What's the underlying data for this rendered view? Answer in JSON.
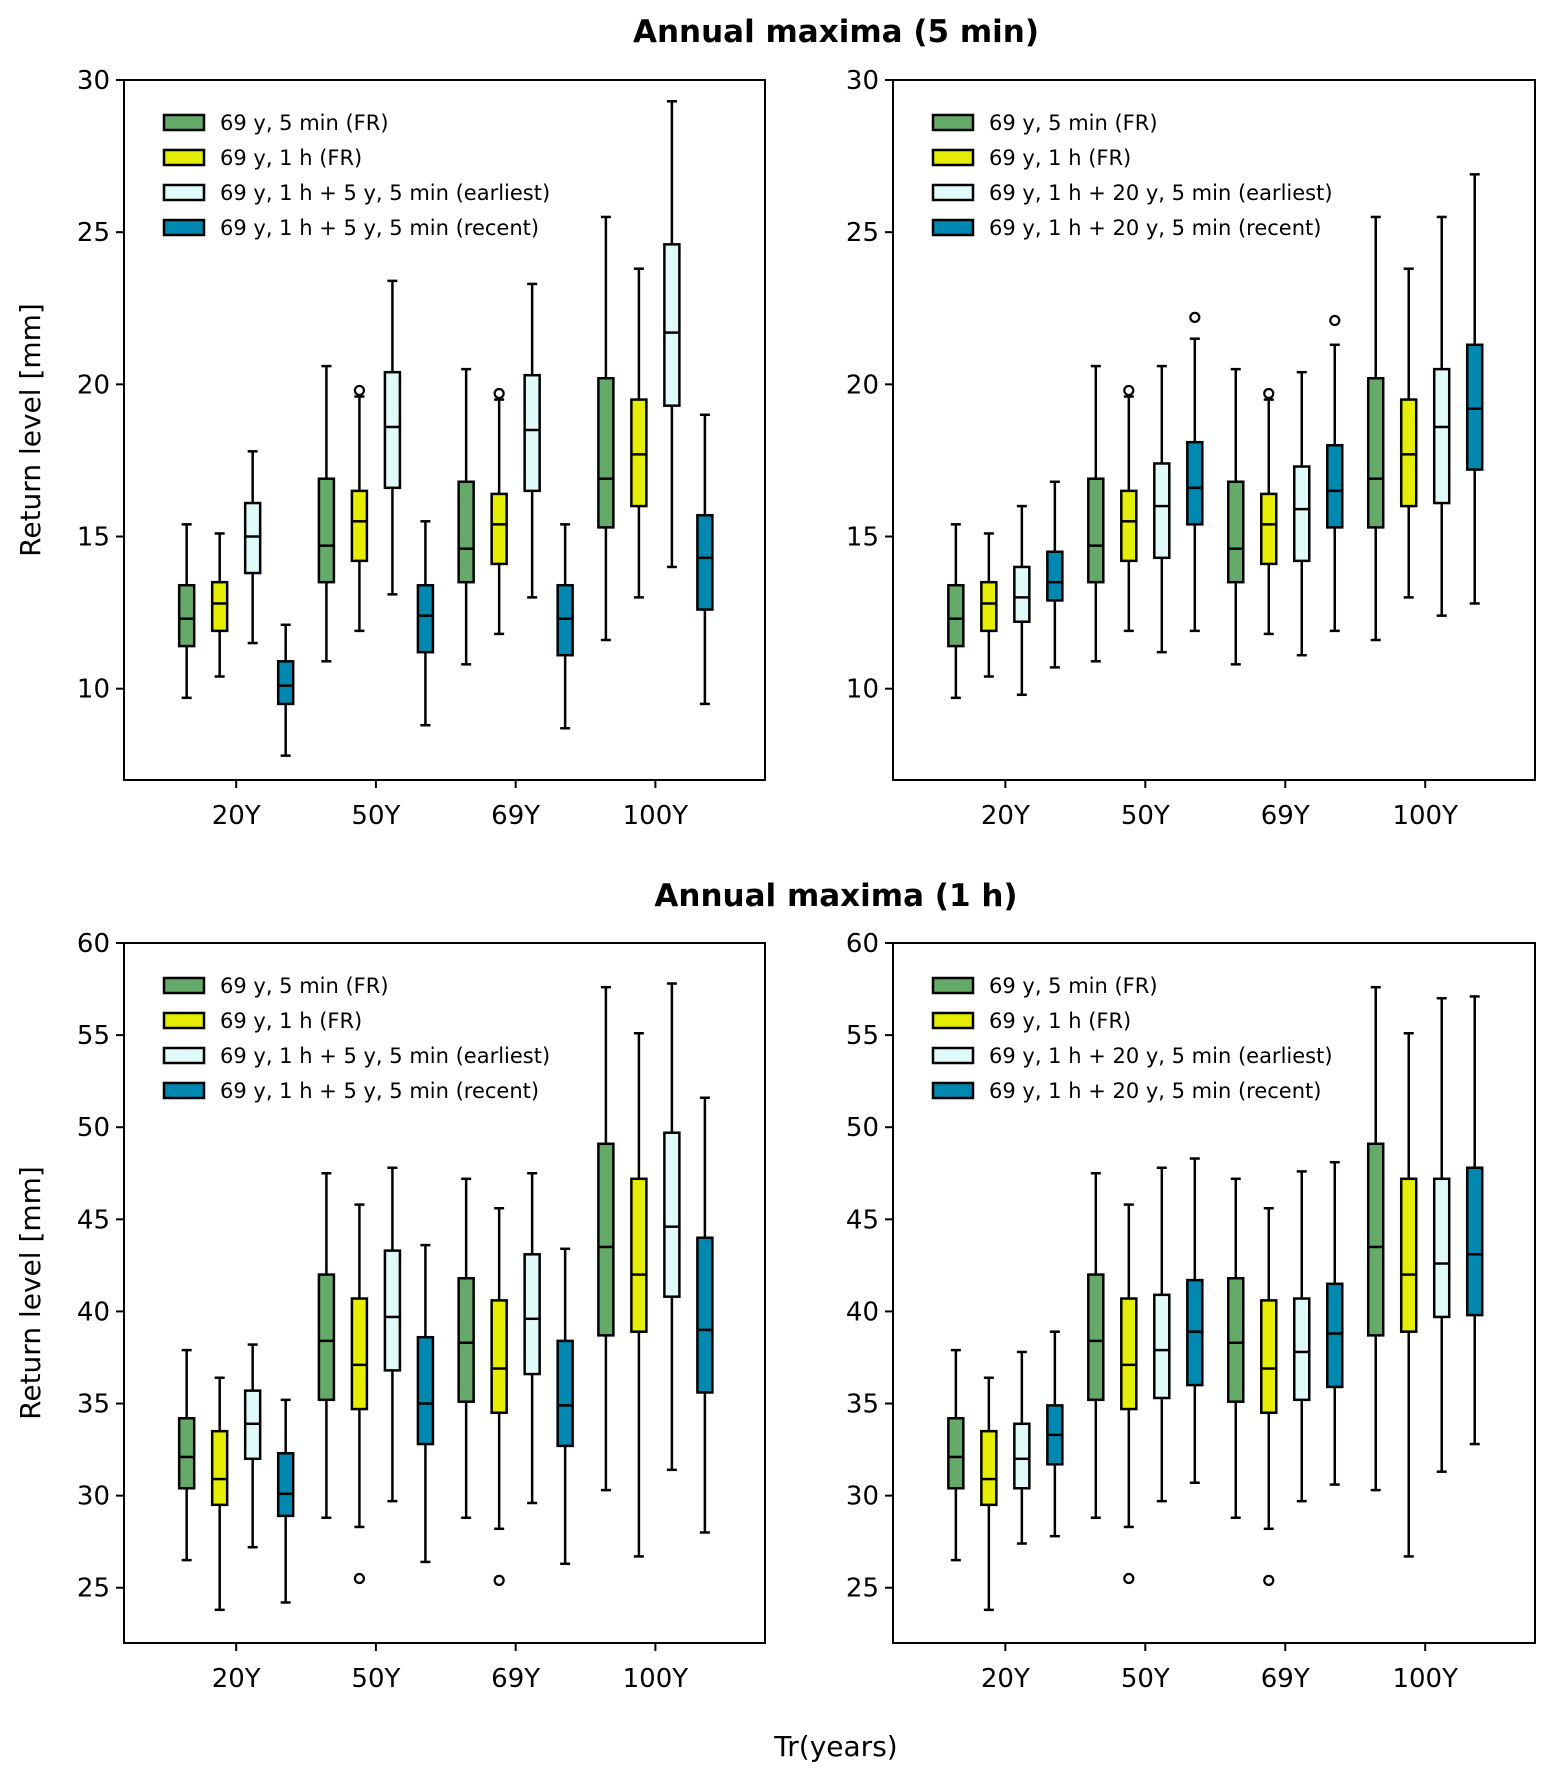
{
  "section_titles": [
    "Annual maxima (5 min)",
    "Annual maxima (1 h)"
  ],
  "xlabel": "Tr(years)",
  "chart_data": [
    {
      "type": "boxplot",
      "title": "Annual maxima (5 min)",
      "ylabel": "Return level [mm]",
      "xlabel": "",
      "ylim": [
        7,
        30
      ],
      "yticks": [
        10,
        15,
        20,
        25,
        30
      ],
      "categories": [
        "20Y",
        "50Y",
        "69Y",
        "100Y"
      ],
      "legend_position": "top-left",
      "series": [
        {
          "name": "69 y, 5 min (FR)",
          "color": "#66aa6a",
          "boxes": [
            {
              "whislo": 9.7,
              "q1": 11.4,
              "med": 12.3,
              "q3": 13.4,
              "whishi": 15.4,
              "fliers": []
            },
            {
              "whislo": 10.9,
              "q1": 13.5,
              "med": 14.7,
              "q3": 16.9,
              "whishi": 20.6,
              "fliers": []
            },
            {
              "whislo": 10.8,
              "q1": 13.5,
              "med": 14.6,
              "q3": 16.8,
              "whishi": 20.5,
              "fliers": []
            },
            {
              "whislo": 11.6,
              "q1": 15.3,
              "med": 16.9,
              "q3": 20.2,
              "whishi": 25.5,
              "fliers": []
            }
          ]
        },
        {
          "name": "69 y, 1 h (FR)",
          "color": "#e5ee00",
          "boxes": [
            {
              "whislo": 10.4,
              "q1": 11.9,
              "med": 12.8,
              "q3": 13.5,
              "whishi": 15.1,
              "fliers": []
            },
            {
              "whislo": 11.9,
              "q1": 14.2,
              "med": 15.5,
              "q3": 16.5,
              "whishi": 19.6,
              "fliers": [
                19.8
              ]
            },
            {
              "whislo": 11.8,
              "q1": 14.1,
              "med": 15.4,
              "q3": 16.4,
              "whishi": 19.5,
              "fliers": [
                19.7
              ]
            },
            {
              "whislo": 13.0,
              "q1": 16.0,
              "med": 17.7,
              "q3": 19.5,
              "whishi": 23.8,
              "fliers": []
            }
          ]
        },
        {
          "name": "69 y, 1 h + 5 y, 5 min (earliest)",
          "color": "#e0fafa",
          "boxes": [
            {
              "whislo": 11.5,
              "q1": 13.8,
              "med": 15.0,
              "q3": 16.1,
              "whishi": 17.8,
              "fliers": []
            },
            {
              "whislo": 13.1,
              "q1": 16.6,
              "med": 18.6,
              "q3": 20.4,
              "whishi": 23.4,
              "fliers": []
            },
            {
              "whislo": 13.0,
              "q1": 16.5,
              "med": 18.5,
              "q3": 20.3,
              "whishi": 23.3,
              "fliers": []
            },
            {
              "whislo": 14.0,
              "q1": 19.3,
              "med": 21.7,
              "q3": 24.6,
              "whishi": 29.3,
              "fliers": []
            }
          ]
        },
        {
          "name": "69 y, 1 h + 5 y, 5 min (recent)",
          "color": "#0088b0",
          "boxes": [
            {
              "whislo": 7.8,
              "q1": 9.5,
              "med": 10.1,
              "q3": 10.9,
              "whishi": 12.1,
              "fliers": []
            },
            {
              "whislo": 8.8,
              "q1": 11.2,
              "med": 12.4,
              "q3": 13.4,
              "whishi": 15.5,
              "fliers": []
            },
            {
              "whislo": 8.7,
              "q1": 11.1,
              "med": 12.3,
              "q3": 13.4,
              "whishi": 15.4,
              "fliers": []
            },
            {
              "whislo": 9.5,
              "q1": 12.6,
              "med": 14.3,
              "q3": 15.7,
              "whishi": 19.0,
              "fliers": []
            }
          ]
        }
      ]
    },
    {
      "type": "boxplot",
      "title": "Annual maxima (5 min)",
      "ylabel": "",
      "xlabel": "",
      "ylim": [
        7,
        30
      ],
      "yticks": [
        10,
        15,
        20,
        25,
        30
      ],
      "categories": [
        "20Y",
        "50Y",
        "69Y",
        "100Y"
      ],
      "legend_position": "top-left",
      "series": [
        {
          "name": "69 y, 5 min (FR)",
          "color": "#66aa6a",
          "boxes": [
            {
              "whislo": 9.7,
              "q1": 11.4,
              "med": 12.3,
              "q3": 13.4,
              "whishi": 15.4,
              "fliers": []
            },
            {
              "whislo": 10.9,
              "q1": 13.5,
              "med": 14.7,
              "q3": 16.9,
              "whishi": 20.6,
              "fliers": []
            },
            {
              "whislo": 10.8,
              "q1": 13.5,
              "med": 14.6,
              "q3": 16.8,
              "whishi": 20.5,
              "fliers": []
            },
            {
              "whislo": 11.6,
              "q1": 15.3,
              "med": 16.9,
              "q3": 20.2,
              "whishi": 25.5,
              "fliers": []
            }
          ]
        },
        {
          "name": "69 y, 1 h (FR)",
          "color": "#e5ee00",
          "boxes": [
            {
              "whislo": 10.4,
              "q1": 11.9,
              "med": 12.8,
              "q3": 13.5,
              "whishi": 15.1,
              "fliers": []
            },
            {
              "whislo": 11.9,
              "q1": 14.2,
              "med": 15.5,
              "q3": 16.5,
              "whishi": 19.6,
              "fliers": [
                19.8
              ]
            },
            {
              "whislo": 11.8,
              "q1": 14.1,
              "med": 15.4,
              "q3": 16.4,
              "whishi": 19.5,
              "fliers": [
                19.7
              ]
            },
            {
              "whislo": 13.0,
              "q1": 16.0,
              "med": 17.7,
              "q3": 19.5,
              "whishi": 23.8,
              "fliers": []
            }
          ]
        },
        {
          "name": "69 y, 1 h + 20 y, 5 min (earliest)",
          "color": "#e0fafa",
          "boxes": [
            {
              "whislo": 9.8,
              "q1": 12.2,
              "med": 13.0,
              "q3": 14.0,
              "whishi": 16.0,
              "fliers": []
            },
            {
              "whislo": 11.2,
              "q1": 14.3,
              "med": 16.0,
              "q3": 17.4,
              "whishi": 20.6,
              "fliers": []
            },
            {
              "whislo": 11.1,
              "q1": 14.2,
              "med": 15.9,
              "q3": 17.3,
              "whishi": 20.4,
              "fliers": []
            },
            {
              "whislo": 12.4,
              "q1": 16.1,
              "med": 18.6,
              "q3": 20.5,
              "whishi": 25.5,
              "fliers": []
            }
          ]
        },
        {
          "name": "69 y, 1 h + 20 y, 5 min (recent)",
          "color": "#0088b0",
          "boxes": [
            {
              "whislo": 10.7,
              "q1": 12.9,
              "med": 13.5,
              "q3": 14.5,
              "whishi": 16.8,
              "fliers": []
            },
            {
              "whislo": 11.9,
              "q1": 15.4,
              "med": 16.6,
              "q3": 18.1,
              "whishi": 21.5,
              "fliers": [
                22.2
              ]
            },
            {
              "whislo": 11.9,
              "q1": 15.3,
              "med": 16.5,
              "q3": 18.0,
              "whishi": 21.3,
              "fliers": [
                22.1
              ]
            },
            {
              "whislo": 12.8,
              "q1": 17.2,
              "med": 19.2,
              "q3": 21.3,
              "whishi": 26.9,
              "fliers": []
            }
          ]
        }
      ]
    },
    {
      "type": "boxplot",
      "title": "Annual maxima (1 h)",
      "ylabel": "Return level [mm]",
      "xlabel": "Tr(years)",
      "ylim": [
        22,
        60
      ],
      "yticks": [
        25,
        30,
        35,
        40,
        45,
        50,
        55,
        60
      ],
      "categories": [
        "20Y",
        "50Y",
        "69Y",
        "100Y"
      ],
      "legend_position": "top-left",
      "series": [
        {
          "name": "69 y, 5 min (FR)",
          "color": "#66aa6a",
          "boxes": [
            {
              "whislo": 26.5,
              "q1": 30.4,
              "med": 32.1,
              "q3": 34.2,
              "whishi": 37.9,
              "fliers": []
            },
            {
              "whislo": 28.8,
              "q1": 35.2,
              "med": 38.4,
              "q3": 42.0,
              "whishi": 47.5,
              "fliers": []
            },
            {
              "whislo": 28.8,
              "q1": 35.1,
              "med": 38.3,
              "q3": 41.8,
              "whishi": 47.2,
              "fliers": []
            },
            {
              "whislo": 30.3,
              "q1": 38.7,
              "med": 43.5,
              "q3": 49.1,
              "whishi": 57.6,
              "fliers": []
            }
          ]
        },
        {
          "name": "69 y, 1 h (FR)",
          "color": "#e5ee00",
          "boxes": [
            {
              "whislo": 23.8,
              "q1": 29.5,
              "med": 30.9,
              "q3": 33.5,
              "whishi": 36.4,
              "fliers": []
            },
            {
              "whislo": 28.3,
              "q1": 34.7,
              "med": 37.1,
              "q3": 40.7,
              "whishi": 45.8,
              "fliers": [
                25.5
              ]
            },
            {
              "whislo": 28.2,
              "q1": 34.5,
              "med": 36.9,
              "q3": 40.6,
              "whishi": 45.6,
              "fliers": [
                25.4
              ]
            },
            {
              "whislo": 26.7,
              "q1": 38.9,
              "med": 42.0,
              "q3": 47.2,
              "whishi": 55.1,
              "fliers": []
            }
          ]
        },
        {
          "name": "69 y, 1 h + 5 y, 5 min (earliest)",
          "color": "#e0fafa",
          "boxes": [
            {
              "whislo": 27.2,
              "q1": 32.0,
              "med": 33.9,
              "q3": 35.7,
              "whishi": 38.2,
              "fliers": []
            },
            {
              "whislo": 29.7,
              "q1": 36.8,
              "med": 39.7,
              "q3": 43.3,
              "whishi": 47.8,
              "fliers": []
            },
            {
              "whislo": 29.6,
              "q1": 36.6,
              "med": 39.6,
              "q3": 43.1,
              "whishi": 47.5,
              "fliers": []
            },
            {
              "whislo": 31.4,
              "q1": 40.8,
              "med": 44.6,
              "q3": 49.7,
              "whishi": 57.8,
              "fliers": []
            }
          ]
        },
        {
          "name": "69 y, 1 h + 5 y, 5 min (recent)",
          "color": "#0088b0",
          "boxes": [
            {
              "whislo": 24.2,
              "q1": 28.9,
              "med": 30.1,
              "q3": 32.3,
              "whishi": 35.2,
              "fliers": []
            },
            {
              "whislo": 26.4,
              "q1": 32.8,
              "med": 35.0,
              "q3": 38.6,
              "whishi": 43.6,
              "fliers": []
            },
            {
              "whislo": 26.3,
              "q1": 32.7,
              "med": 34.9,
              "q3": 38.4,
              "whishi": 43.4,
              "fliers": []
            },
            {
              "whislo": 28.0,
              "q1": 35.6,
              "med": 39.0,
              "q3": 44.0,
              "whishi": 51.6,
              "fliers": []
            }
          ]
        }
      ]
    },
    {
      "type": "boxplot",
      "title": "Annual maxima (1 h)",
      "ylabel": "",
      "xlabel": "Tr(years)",
      "ylim": [
        22,
        60
      ],
      "yticks": [
        25,
        30,
        35,
        40,
        45,
        50,
        55,
        60
      ],
      "categories": [
        "20Y",
        "50Y",
        "69Y",
        "100Y"
      ],
      "legend_position": "top-left",
      "series": [
        {
          "name": "69 y, 5 min (FR)",
          "color": "#66aa6a",
          "boxes": [
            {
              "whislo": 26.5,
              "q1": 30.4,
              "med": 32.1,
              "q3": 34.2,
              "whishi": 37.9,
              "fliers": []
            },
            {
              "whislo": 28.8,
              "q1": 35.2,
              "med": 38.4,
              "q3": 42.0,
              "whishi": 47.5,
              "fliers": []
            },
            {
              "whislo": 28.8,
              "q1": 35.1,
              "med": 38.3,
              "q3": 41.8,
              "whishi": 47.2,
              "fliers": []
            },
            {
              "whislo": 30.3,
              "q1": 38.7,
              "med": 43.5,
              "q3": 49.1,
              "whishi": 57.6,
              "fliers": []
            }
          ]
        },
        {
          "name": "69 y, 1 h (FR)",
          "color": "#e5ee00",
          "boxes": [
            {
              "whislo": 23.8,
              "q1": 29.5,
              "med": 30.9,
              "q3": 33.5,
              "whishi": 36.4,
              "fliers": []
            },
            {
              "whislo": 28.3,
              "q1": 34.7,
              "med": 37.1,
              "q3": 40.7,
              "whishi": 45.8,
              "fliers": [
                25.5
              ]
            },
            {
              "whislo": 28.2,
              "q1": 34.5,
              "med": 36.9,
              "q3": 40.6,
              "whishi": 45.6,
              "fliers": [
                25.4
              ]
            },
            {
              "whislo": 26.7,
              "q1": 38.9,
              "med": 42.0,
              "q3": 47.2,
              "whishi": 55.1,
              "fliers": []
            }
          ]
        },
        {
          "name": "69 y, 1 h + 20 y, 5 min (earliest)",
          "color": "#e0fafa",
          "boxes": [
            {
              "whislo": 27.4,
              "q1": 30.4,
              "med": 32.0,
              "q3": 33.9,
              "whishi": 37.8,
              "fliers": []
            },
            {
              "whislo": 29.7,
              "q1": 35.3,
              "med": 37.9,
              "q3": 40.9,
              "whishi": 47.8,
              "fliers": []
            },
            {
              "whislo": 29.7,
              "q1": 35.2,
              "med": 37.8,
              "q3": 40.7,
              "whishi": 47.6,
              "fliers": []
            },
            {
              "whislo": 31.3,
              "q1": 39.7,
              "med": 42.6,
              "q3": 47.2,
              "whishi": 57.0,
              "fliers": []
            }
          ]
        },
        {
          "name": "69 y, 1 h + 20 y, 5 min (recent)",
          "color": "#0088b0",
          "boxes": [
            {
              "whislo": 27.8,
              "q1": 31.7,
              "med": 33.3,
              "q3": 34.9,
              "whishi": 38.9,
              "fliers": []
            },
            {
              "whislo": 30.7,
              "q1": 36.0,
              "med": 38.9,
              "q3": 41.7,
              "whishi": 48.3,
              "fliers": []
            },
            {
              "whislo": 30.6,
              "q1": 35.9,
              "med": 38.8,
              "q3": 41.5,
              "whishi": 48.1,
              "fliers": []
            },
            {
              "whislo": 32.8,
              "q1": 39.8,
              "med": 43.1,
              "q3": 47.8,
              "whishi": 57.1,
              "fliers": []
            }
          ]
        }
      ]
    }
  ]
}
